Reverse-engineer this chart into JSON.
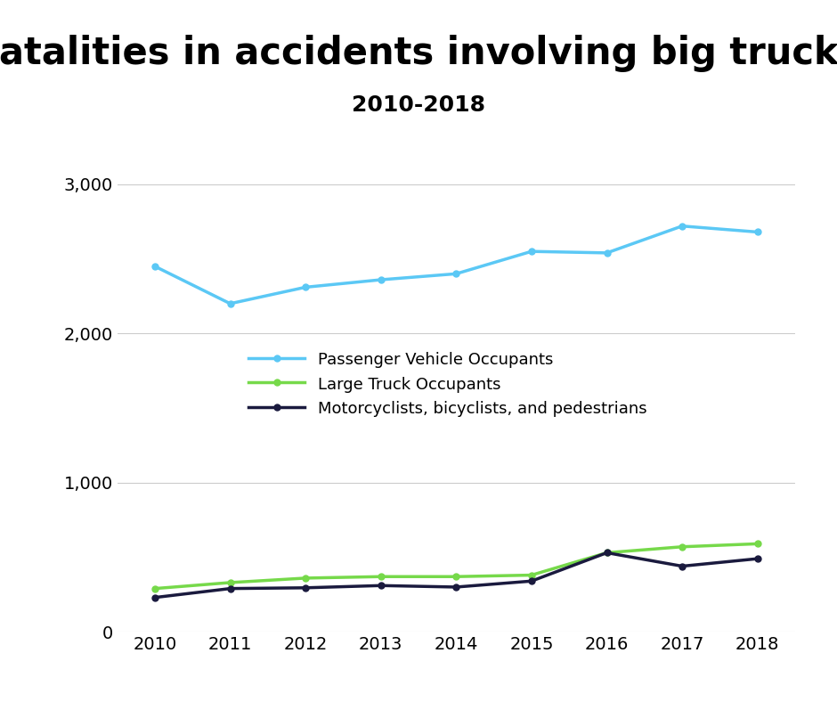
{
  "title": "Fatalities in accidents involving big trucks",
  "subtitle": "2010-2018",
  "years": [
    2010,
    2011,
    2012,
    2013,
    2014,
    2015,
    2016,
    2017,
    2018
  ],
  "passenger_vehicle_occupants": [
    2450,
    2200,
    2310,
    2360,
    2400,
    2550,
    2540,
    2720,
    2680
  ],
  "large_truck_occupants": [
    290,
    330,
    360,
    370,
    370,
    380,
    530,
    570,
    590
  ],
  "motorcyclists_bicyclists_pedestrians": [
    230,
    290,
    295,
    310,
    300,
    340,
    530,
    440,
    490
  ],
  "passenger_vehicle_color": "#5bc8f5",
  "large_truck_color": "#76d94a",
  "motorcyclists_color": "#1a1a3e",
  "background_color": "#ffffff",
  "ylim": [
    0,
    3200
  ],
  "yticks": [
    0,
    1000,
    2000,
    3000
  ],
  "legend_labels": [
    "Passenger Vehicle Occupants",
    "Large Truck Occupants",
    "Motorcyclists, bicyclists, and pedestrians"
  ],
  "title_fontsize": 30,
  "subtitle_fontsize": 18,
  "tick_fontsize": 14,
  "legend_fontsize": 13
}
